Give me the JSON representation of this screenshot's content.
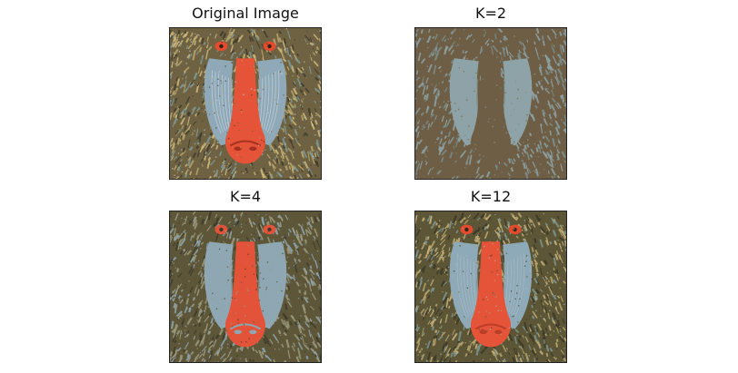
{
  "figure": {
    "panels": [
      {
        "id": "original",
        "title": "Original Image",
        "colors": "original"
      },
      {
        "id": "k2",
        "title": "K=2",
        "colors": "k2"
      },
      {
        "id": "k4",
        "title": "K=4",
        "colors": "k4"
      },
      {
        "id": "k12",
        "title": "K=12",
        "colors": "k12"
      }
    ]
  },
  "palettes": {
    "original": {
      "bg": "#6f6243",
      "fur1": "#b6a66b",
      "fur2": "#3f3b2c",
      "fur3": "#7f9a95",
      "cheek": "#8fa9b8",
      "cheekHi": "#c3d2dc",
      "nose": "#e55339",
      "noseDark": "#a5321f",
      "eye": "#e34a2e",
      "pupil": "#2a2518",
      "mane": "#d0b87c"
    },
    "k2": {
      "bg": "#6e5e45",
      "fur1": "#7b8f8e",
      "fur2": "#6e5e45",
      "fur3": "#8ea3a7",
      "cheek": "#8ea3a7",
      "cheekHi": "#8ea3a7",
      "nose": "#6e5e45",
      "noseDark": "#6e5e45",
      "eye": "#6e5e45",
      "pupil": "#6e5e45",
      "mane": "#8ea3a7"
    },
    "k4": {
      "bg": "#5e5638",
      "fur1": "#9b9a80",
      "fur2": "#3c3a2a",
      "fur3": "#8ea7b3",
      "cheek": "#8ea7b3",
      "cheekHi": "#8ea7b3",
      "nose": "#e2533a",
      "noseDark": "#8ea7b3",
      "eye": "#e2533a",
      "pupil": "#3c3a2a",
      "mane": "#9b9a80"
    },
    "k12": {
      "bg": "#5c5536",
      "fur1": "#b5a76f",
      "fur2": "#3a3727",
      "fur3": "#7c968f",
      "cheek": "#8ea9b7",
      "cheekHi": "#a9bcc6",
      "nose": "#e55339",
      "noseDark": "#b93d27",
      "eye": "#e34a2e",
      "pupil": "#2f2a1b",
      "mane": "#c9b27a"
    }
  }
}
